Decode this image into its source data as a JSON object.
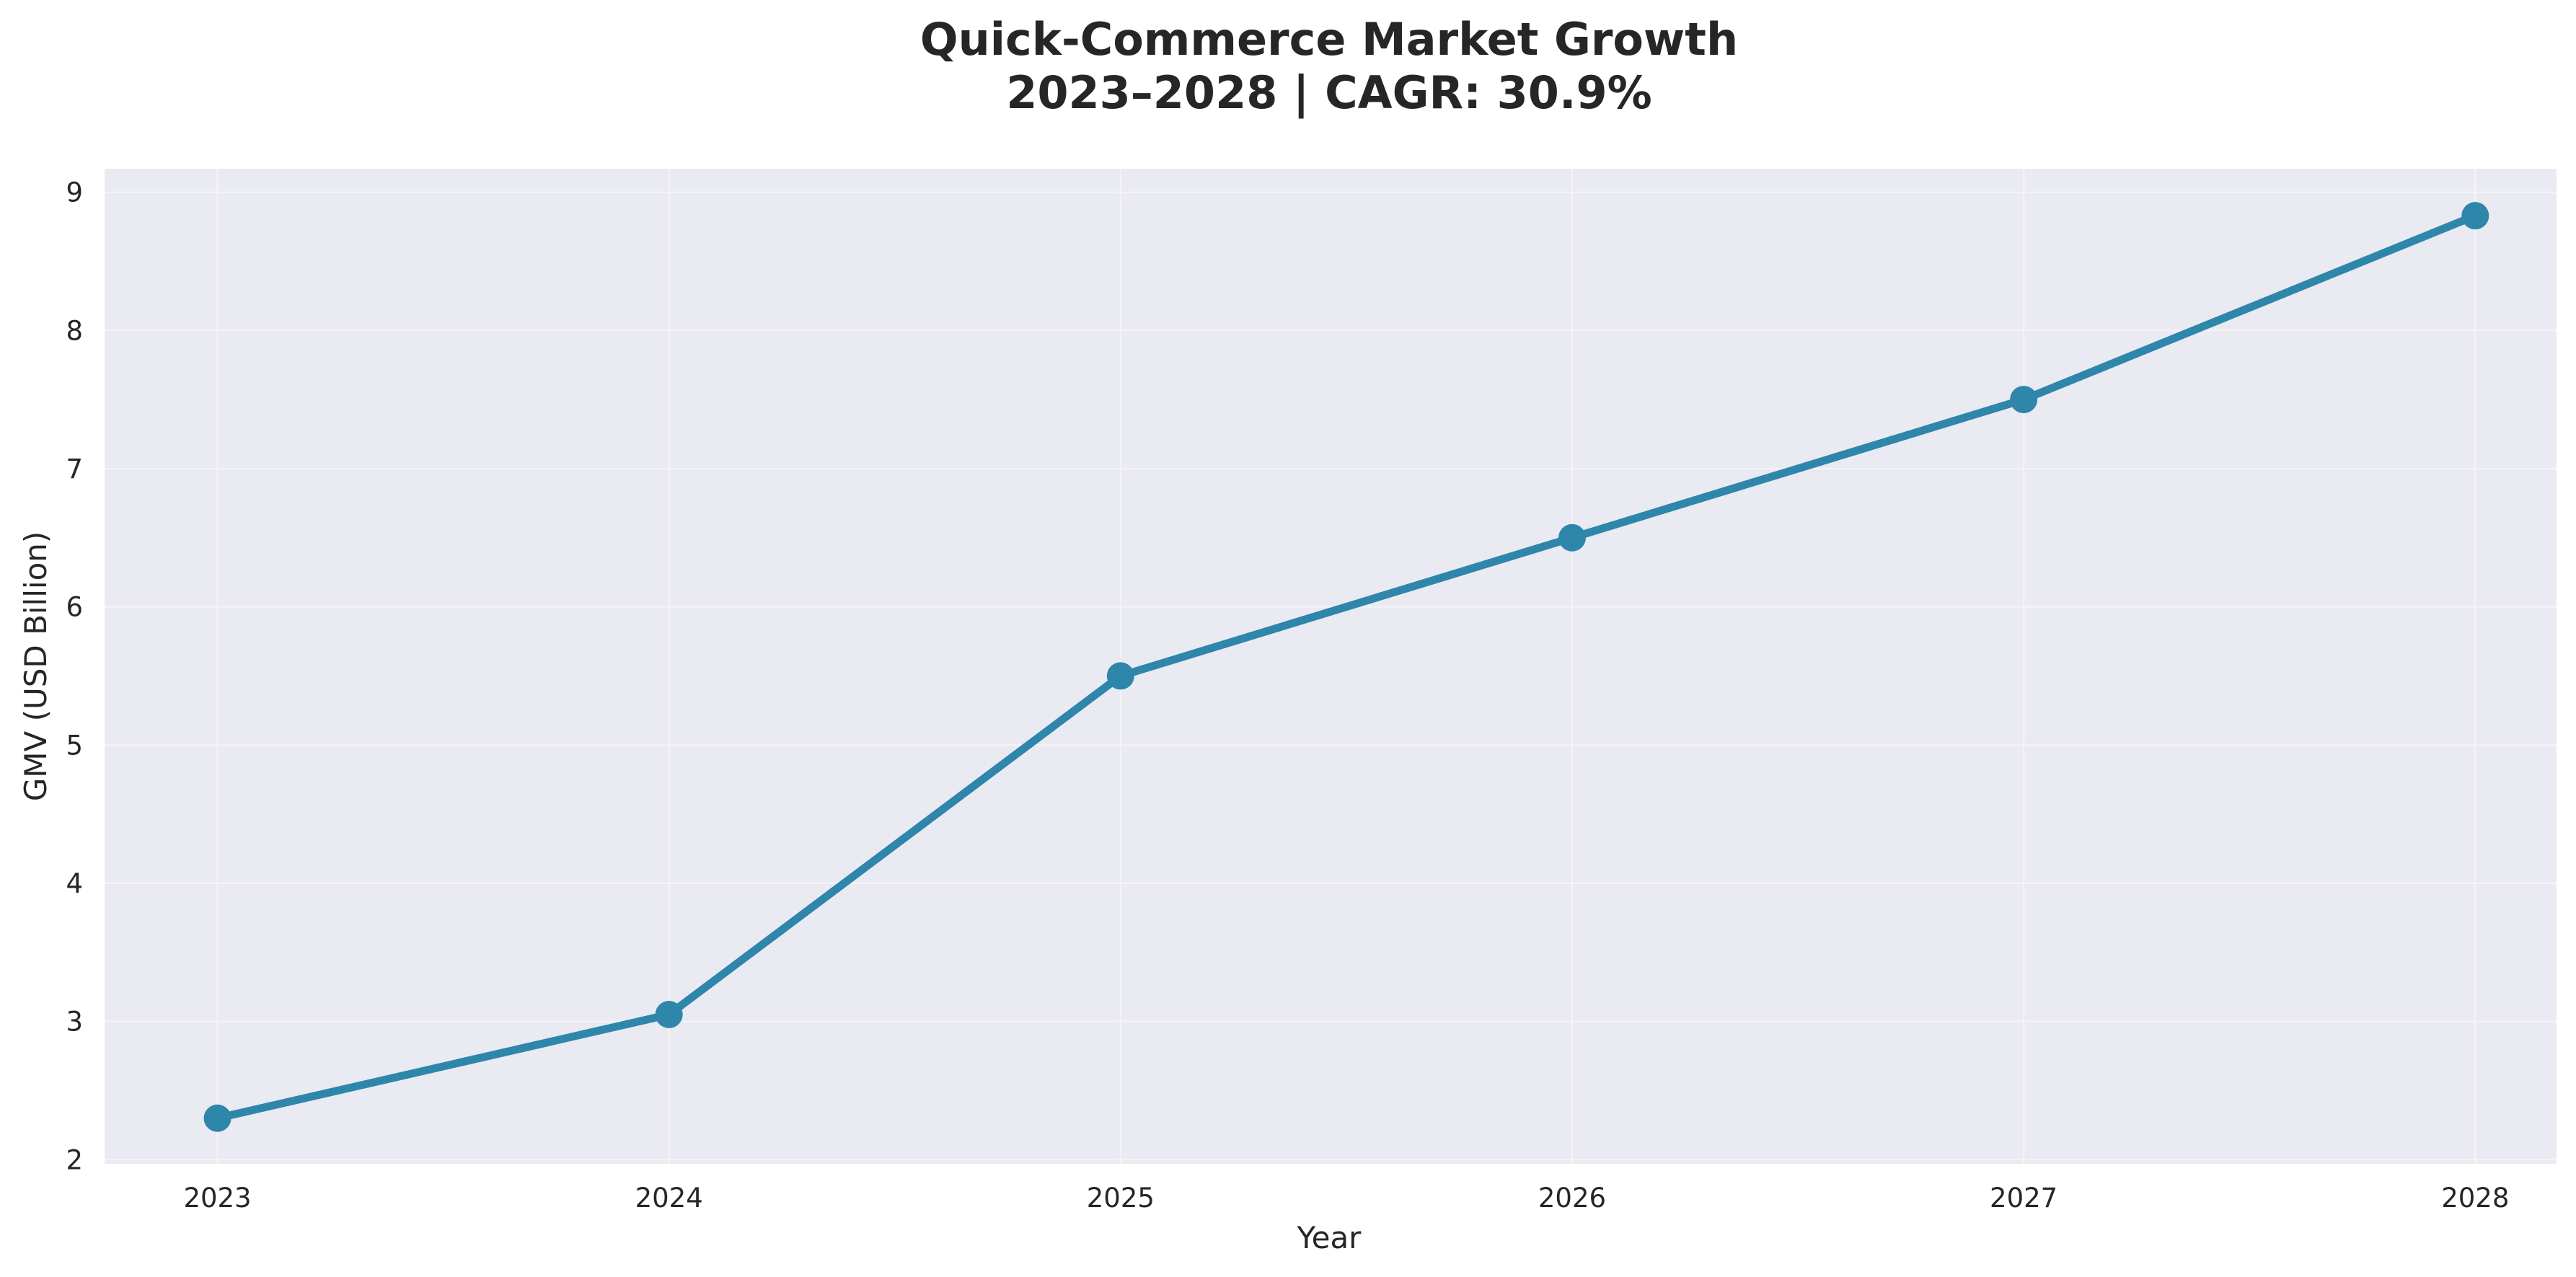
{
  "chart_data": {
    "type": "line",
    "title_lines": [
      "Quick-Commerce Market Growth",
      "2023–2028 | CAGR: 30.9%"
    ],
    "xlabel": "Year",
    "ylabel": "GMV (USD Billion)",
    "x": [
      2023,
      2024,
      2025,
      2026,
      2027,
      2028
    ],
    "x_tick_labels": [
      "2023",
      "2024",
      "2025",
      "2026",
      "2027",
      "2028"
    ],
    "y_ticks": [
      2,
      3,
      4,
      5,
      6,
      7,
      8,
      9
    ],
    "y_tick_labels": [
      "2",
      "3",
      "4",
      "5",
      "6",
      "7",
      "8",
      "9"
    ],
    "xlim": [
      2022.75,
      2028.18
    ],
    "ylim": [
      1.97,
      9.17
    ],
    "series": [
      {
        "values": [
          2.3,
          3.05,
          5.5,
          6.5,
          7.5,
          8.83
        ],
        "color": "#2e86ab",
        "marker": "circle"
      }
    ],
    "grid": true,
    "legend": "none",
    "plot_background": "#eaeaf2",
    "grid_color": "#f4f4f8"
  }
}
